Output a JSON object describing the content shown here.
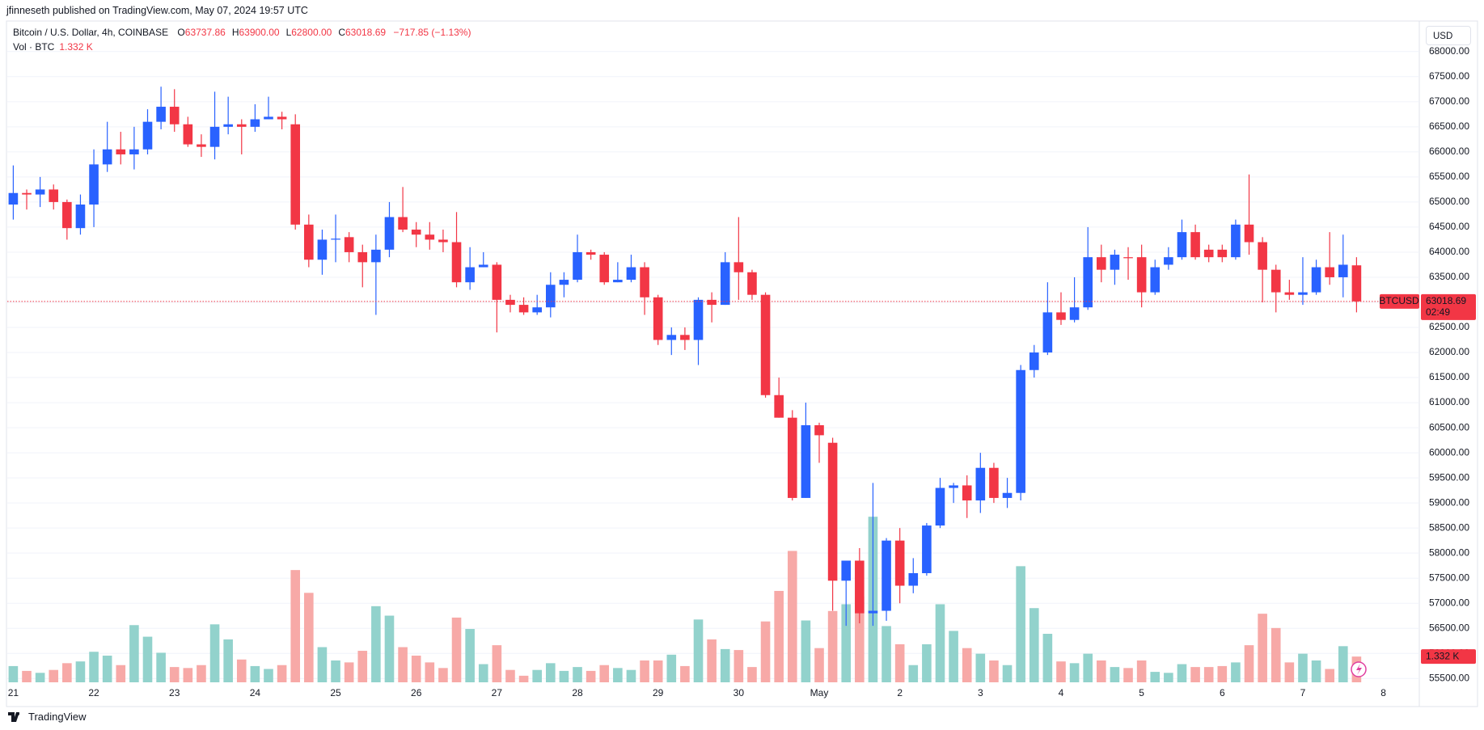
{
  "header": "jfinneseth published on TradingView.com, May 07, 2024 19:57 UTC",
  "footer": "TradingView",
  "chart_data": {
    "type": "candlestick",
    "title": "Bitcoin / U.S. Dollar, 4h, COINBASE",
    "ohlc_legend": [
      {
        "key": "O",
        "value": "63737.86"
      },
      {
        "key": "H",
        "value": "63900.00"
      },
      {
        "key": "L",
        "value": "62800.00"
      },
      {
        "key": "C",
        "value": "63018.69"
      }
    ],
    "change_label": "−717.85 (−1.13%)",
    "volume_title": "Vol · BTC",
    "volume_legend": "1.332 K",
    "currency": "USD",
    "symbol": "BTCUSD",
    "last_price_label": "63018.69",
    "countdown": "02:49",
    "volume_tag": "1.332 K",
    "categories": [
      "21",
      null,
      null,
      null,
      null,
      null,
      "22",
      null,
      null,
      null,
      null,
      null,
      "23",
      null,
      null,
      null,
      null,
      null,
      "24",
      null,
      null,
      null,
      null,
      null,
      "25",
      null,
      null,
      null,
      null,
      null,
      "26",
      null,
      null,
      null,
      null,
      null,
      "27",
      null,
      null,
      null,
      null,
      null,
      "28",
      null,
      null,
      null,
      null,
      null,
      "29",
      null,
      null,
      null,
      null,
      null,
      "30",
      null,
      null,
      null,
      null,
      null,
      "May",
      null,
      null,
      null,
      null,
      null,
      "2",
      null,
      null,
      null,
      null,
      null,
      "3",
      null,
      null,
      null,
      null,
      null,
      "4",
      null,
      null,
      null,
      null,
      null,
      "5",
      null,
      null,
      null,
      null,
      null,
      "6",
      null,
      null,
      null,
      null,
      null,
      "7",
      null,
      null,
      null,
      null,
      null,
      "8"
    ],
    "open": [
      64950,
      65180,
      65150,
      65250,
      65000,
      64480,
      64950,
      65750,
      66050,
      65950,
      66050,
      66600,
      66900,
      66550,
      66150,
      66100,
      66500,
      66550,
      66500,
      66650,
      66700,
      66550,
      64550,
      63850,
      64250,
      64300,
      64000,
      63800,
      64050,
      64700,
      64450,
      64350,
      64250,
      64200,
      63400,
      63700,
      63750,
      63050,
      62950,
      62800,
      62900,
      63350,
      63450,
      64000,
      63950,
      63400,
      63450,
      63700,
      63100,
      62250,
      62350,
      62250,
      63050,
      62950,
      63800,
      63600,
      63150,
      61150,
      60700,
      59100,
      60550,
      60200,
      57450,
      57850,
      56800,
      56850,
      58250,
      57350,
      57600,
      58550,
      59300,
      59350,
      59050,
      59700,
      59100,
      59200,
      61650,
      62000,
      62800,
      62650,
      62900,
      63900,
      63650,
      63900,
      63900,
      63200,
      63750,
      63900,
      64400,
      64050,
      64050,
      63900,
      64550,
      64200,
      63650,
      63200,
      63150,
      63200,
      63700,
      63500,
      63737.86,
      null,
      null
    ],
    "high": [
      65730,
      65250,
      65500,
      65350,
      65050,
      65150,
      66050,
      66600,
      66400,
      66500,
      66850,
      67300,
      67250,
      66700,
      66350,
      67200,
      67100,
      66650,
      66950,
      67100,
      66800,
      66750,
      64750,
      64450,
      64750,
      64400,
      64150,
      64350,
      65000,
      65300,
      64600,
      64600,
      64450,
      64800,
      64100,
      64000,
      63800,
      63150,
      63100,
      63150,
      63600,
      63600,
      64350,
      64050,
      64000,
      63800,
      63950,
      63800,
      63150,
      62500,
      62500,
      63100,
      63200,
      64000,
      64700,
      63650,
      63200,
      61500,
      60850,
      61000,
      60600,
      60300,
      57850,
      58100,
      59400,
      58300,
      58500,
      57900,
      58600,
      59500,
      59400,
      59550,
      60000,
      59800,
      59500,
      61750,
      62150,
      63400,
      63200,
      63500,
      64500,
      64150,
      64050,
      64100,
      64150,
      63850,
      64100,
      64650,
      64550,
      64150,
      64150,
      64650,
      65550,
      64300,
      63750,
      63450,
      63900,
      63850,
      64400,
      64350,
      63900,
      null,
      null
    ],
    "low": [
      64650,
      64850,
      64900,
      64850,
      64250,
      64350,
      64500,
      65600,
      65750,
      65650,
      65950,
      66450,
      66400,
      66100,
      65900,
      65850,
      66350,
      65950,
      66400,
      66650,
      66450,
      64450,
      63700,
      63550,
      63800,
      63800,
      63300,
      62750,
      63900,
      64400,
      64100,
      64050,
      64000,
      63300,
      63250,
      63700,
      62400,
      62800,
      62750,
      62750,
      62700,
      63100,
      63400,
      63850,
      63350,
      63400,
      63400,
      62750,
      62150,
      61950,
      62050,
      61750,
      62600,
      62950,
      63050,
      63050,
      61100,
      60700,
      59050,
      59100,
      59800,
      56850,
      56550,
      56600,
      56550,
      56650,
      57000,
      57200,
      57550,
      58500,
      59000,
      58700,
      58800,
      59000,
      58900,
      59050,
      61500,
      61950,
      62550,
      62600,
      62850,
      63400,
      63350,
      63450,
      62900,
      63150,
      63650,
      63850,
      63850,
      63800,
      63800,
      63850,
      63950,
      63000,
      62800,
      63050,
      62950,
      63150,
      63350,
      63100,
      62800,
      null,
      null
    ],
    "close": [
      65180,
      65150,
      65250,
      65000,
      64480,
      64950,
      65750,
      66050,
      65950,
      66050,
      66600,
      66900,
      66550,
      66150,
      66100,
      66500,
      66550,
      66500,
      66650,
      66700,
      66650,
      64550,
      63850,
      64250,
      64270,
      64000,
      63800,
      64050,
      64700,
      64450,
      64350,
      64250,
      64200,
      63400,
      63700,
      63750,
      63050,
      62950,
      62800,
      62900,
      63350,
      63450,
      64000,
      63950,
      63400,
      63450,
      63700,
      63100,
      62250,
      62350,
      62250,
      63050,
      62950,
      63800,
      63600,
      63150,
      61150,
      60700,
      59100,
      60550,
      60350,
      57450,
      57850,
      56800,
      56850,
      58250,
      57350,
      57600,
      58550,
      59300,
      59350,
      59050,
      59700,
      59100,
      59200,
      61650,
      62000,
      62800,
      62650,
      62900,
      63900,
      63650,
      63950,
      63880,
      63200,
      63700,
      63900,
      64400,
      63900,
      63900,
      63900,
      64550,
      64200,
      63650,
      63200,
      63150,
      63200,
      63700,
      63500,
      63750,
      63018.69,
      null,
      null
    ],
    "volume": [
      0.84,
      0.59,
      0.49,
      0.64,
      0.99,
      1.08,
      1.58,
      1.38,
      0.89,
      2.96,
      2.36,
      1.53,
      0.79,
      0.74,
      0.89,
      3.0,
      2.22,
      1.18,
      0.84,
      0.69,
      0.89,
      5.81,
      4.63,
      1.82,
      1.13,
      1.03,
      1.63,
      3.94,
      3.45,
      1.82,
      1.38,
      1.03,
      0.74,
      3.35,
      2.76,
      0.94,
      1.92,
      0.64,
      0.34,
      0.64,
      0.99,
      0.59,
      0.79,
      0.59,
      0.89,
      0.74,
      0.64,
      1.13,
      1.13,
      1.43,
      0.84,
      3.25,
      2.22,
      1.72,
      1.67,
      0.79,
      3.15,
      4.73,
      6.8,
      3.2,
      1.77,
      3.69,
      4.04,
      4.43,
      8.57,
      2.91,
      1.97,
      0.89,
      1.97,
      4.04,
      2.66,
      1.77,
      1.48,
      1.13,
      0.89,
      6.01,
      3.84,
      2.51,
      1.08,
      0.99,
      1.48,
      1.13,
      0.79,
      0.74,
      1.13,
      0.54,
      0.49,
      0.94,
      0.79,
      0.79,
      0.84,
      1.03,
      1.92,
      3.55,
      2.81,
      1.03,
      1.48,
      1.13,
      0.69,
      1.87,
      1.332,
      null,
      null
    ],
    "up_color": "#2962ff",
    "down_color": "#f23645",
    "up_volume_color": "#92d2cc",
    "down_volume_color": "#f7a9a7",
    "ylim": [
      55424,
      68190
    ],
    "yticks": [
      {
        "value": 55500,
        "label": "55500.00"
      },
      {
        "value": 56000,
        "label": "56000.00"
      },
      {
        "value": 56500,
        "label": "56500.00"
      },
      {
        "value": 57000,
        "label": "57000.00"
      },
      {
        "value": 57500,
        "label": "57500.00"
      },
      {
        "value": 58000,
        "label": "58000.00"
      },
      {
        "value": 58500,
        "label": "58500.00"
      },
      {
        "value": 59000,
        "label": "59000.00"
      },
      {
        "value": 59500,
        "label": "59500.00"
      },
      {
        "value": 60000,
        "label": "60000.00"
      },
      {
        "value": 60500,
        "label": "60500.00"
      },
      {
        "value": 61000,
        "label": "61000.00"
      },
      {
        "value": 61500,
        "label": "61500.00"
      },
      {
        "value": 62000,
        "label": "62000.00"
      },
      {
        "value": 62500,
        "label": "62500.00"
      },
      {
        "value": 63000,
        "label": "63000.00"
      },
      {
        "value": 63500,
        "label": "63500.00"
      },
      {
        "value": 64000,
        "label": "64000.00"
      },
      {
        "value": 64500,
        "label": "64500.00"
      },
      {
        "value": 65000,
        "label": "65000.00"
      },
      {
        "value": 65500,
        "label": "65500.00"
      },
      {
        "value": 66000,
        "label": "66000.00"
      },
      {
        "value": 66500,
        "label": "66500.00"
      },
      {
        "value": 67000,
        "label": "67000.00"
      },
      {
        "value": 67500,
        "label": "67500.00"
      },
      {
        "value": 68000,
        "label": "68000.00"
      }
    ],
    "grid": true
  }
}
